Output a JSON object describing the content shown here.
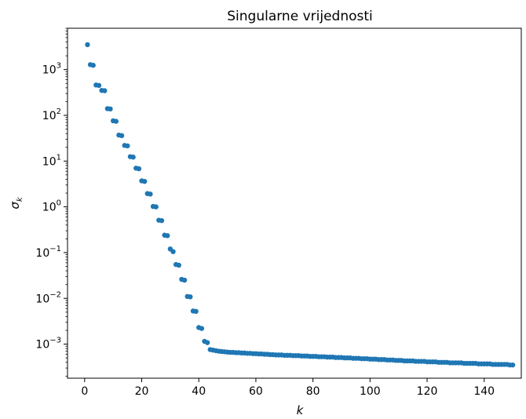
{
  "chart_data": {
    "type": "scatter",
    "title": "Singularne vrijednosti",
    "xlabel": "k",
    "ylabel": "σ",
    "ylabel_sub": "k",
    "xlim": [
      -6,
      153
    ],
    "ylim": [
      0.00018,
      8000
    ],
    "yscale": "log",
    "grid": false,
    "marker_color": "#1f77b4",
    "x_ticks": [
      {
        "value": 0,
        "label": "0"
      },
      {
        "value": 20,
        "label": "20"
      },
      {
        "value": 40,
        "label": "40"
      },
      {
        "value": 60,
        "label": "60"
      },
      {
        "value": 80,
        "label": "80"
      },
      {
        "value": 100,
        "label": "100"
      },
      {
        "value": 120,
        "label": "120"
      },
      {
        "value": 140,
        "label": "140"
      }
    ],
    "y_ticks": [
      {
        "value": 1000,
        "base": "10",
        "exp": "3"
      },
      {
        "value": 100,
        "base": "10",
        "exp": "2"
      },
      {
        "value": 10,
        "base": "10",
        "exp": "1"
      },
      {
        "value": 1,
        "base": "10",
        "exp": "0"
      },
      {
        "value": 0.1,
        "base": "10",
        "exp": "−1"
      },
      {
        "value": 0.01,
        "base": "10",
        "exp": "−2"
      },
      {
        "value": 0.001,
        "base": "10",
        "exp": "−3"
      }
    ],
    "series": [
      {
        "x": [
          1,
          2,
          3,
          4,
          5,
          6,
          7,
          8,
          9,
          10,
          11,
          12,
          13,
          14,
          15,
          16,
          17,
          18,
          19,
          20,
          21,
          22,
          23,
          24,
          25,
          26,
          27,
          28,
          29,
          30,
          31,
          32,
          33,
          34,
          35,
          36,
          37,
          38,
          39,
          40,
          41,
          42,
          43,
          44,
          45,
          46,
          47,
          48,
          49,
          50,
          51,
          52,
          53,
          54,
          55,
          56,
          57,
          58,
          59,
          60,
          61,
          62,
          63,
          64,
          65,
          66,
          67,
          68,
          69,
          70,
          71,
          72,
          73,
          74,
          75,
          76,
          77,
          78,
          79,
          80,
          81,
          82,
          83,
          84,
          85,
          86,
          87,
          88,
          89,
          90,
          91,
          92,
          93,
          94,
          95,
          96,
          97,
          98,
          99,
          100,
          101,
          102,
          103,
          104,
          105,
          106,
          107,
          108,
          109,
          110,
          111,
          112,
          113,
          114,
          115,
          116,
          117,
          118,
          119,
          120,
          121,
          122,
          123,
          124,
          125,
          126,
          127,
          128,
          129,
          130,
          131,
          132,
          133,
          134,
          135,
          136,
          137,
          138,
          139,
          140,
          141,
          142,
          143,
          144,
          145,
          146,
          147,
          148,
          149,
          150
        ],
        "y": [
          3500,
          1280,
          1240,
          460,
          450,
          350,
          345,
          140,
          138,
          76,
          74,
          37,
          36,
          22,
          21.5,
          12.5,
          12.2,
          7,
          6.8,
          3.7,
          3.6,
          1.95,
          1.9,
          1.02,
          1.0,
          0.51,
          0.5,
          0.24,
          0.235,
          0.12,
          0.105,
          0.055,
          0.053,
          0.026,
          0.025,
          0.011,
          0.0108,
          0.0053,
          0.0052,
          0.0023,
          0.0022,
          0.00115,
          0.00108,
          0.00076,
          0.00074,
          0.00072,
          0.0007,
          0.00069,
          0.00068,
          0.00067,
          0.00066,
          0.00066,
          0.00065,
          0.00065,
          0.00064,
          0.00064,
          0.00063,
          0.00063,
          0.00062,
          0.00062,
          0.00061,
          0.00061,
          0.0006,
          0.0006,
          0.00059,
          0.00059,
          0.00058,
          0.00058,
          0.00058,
          0.00057,
          0.00057,
          0.00057,
          0.00056,
          0.00056,
          0.00056,
          0.00055,
          0.00055,
          0.00055,
          0.00054,
          0.00054,
          0.00054,
          0.00053,
          0.00053,
          0.00053,
          0.00052,
          0.00052,
          0.00052,
          0.00051,
          0.00051,
          0.00051,
          0.0005,
          0.0005,
          0.0005,
          0.00049,
          0.00049,
          0.00049,
          0.00048,
          0.00048,
          0.00048,
          0.00047,
          0.00047,
          0.00047,
          0.00046,
          0.00046,
          0.00046,
          0.00045,
          0.00045,
          0.00045,
          0.00044,
          0.00044,
          0.00044,
          0.00043,
          0.00043,
          0.00043,
          0.00043,
          0.00042,
          0.00042,
          0.00042,
          0.00042,
          0.00041,
          0.00041,
          0.00041,
          0.00041,
          0.0004,
          0.0004,
          0.0004,
          0.0004,
          0.00039,
          0.00039,
          0.00039,
          0.00039,
          0.00039,
          0.00038,
          0.00038,
          0.00038,
          0.00038,
          0.00038,
          0.00037,
          0.00037,
          0.00037,
          0.00037,
          0.00037,
          0.00036,
          0.00036,
          0.00036,
          0.00036,
          0.00036,
          0.00036,
          0.00035,
          0.00035
        ]
      }
    ]
  }
}
